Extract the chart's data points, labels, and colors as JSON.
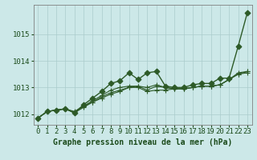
{
  "title": "Graphe pression niveau de la mer (hPa)",
  "background_color": "#cce8e8",
  "grid_color": "#aacccc",
  "line_color": "#2d5a27",
  "xlim": [
    -0.5,
    23.5
  ],
  "ylim": [
    1011.6,
    1016.1
  ],
  "yticks": [
    1012,
    1013,
    1014,
    1015
  ],
  "xticks": [
    0,
    1,
    2,
    3,
    4,
    5,
    6,
    7,
    8,
    9,
    10,
    11,
    12,
    13,
    14,
    15,
    16,
    17,
    18,
    19,
    20,
    21,
    22,
    23
  ],
  "series": [
    {
      "y": [
        1011.85,
        1012.1,
        1012.15,
        1012.2,
        1012.05,
        1012.35,
        1012.6,
        1012.85,
        1013.15,
        1013.25,
        1013.55,
        1013.3,
        1013.55,
        1013.6,
        1013.05,
        1013.0,
        1013.0,
        1013.1,
        1013.15,
        1013.15,
        1013.35,
        1013.35,
        1014.55,
        1015.8
      ],
      "marker": "D",
      "markersize": 3.5,
      "lw": 1.0
    },
    {
      "y": [
        1011.85,
        1012.1,
        1012.15,
        1012.2,
        1012.05,
        1012.3,
        1012.5,
        1012.7,
        1012.9,
        1013.0,
        1013.05,
        1013.05,
        1012.9,
        1013.05,
        1013.0,
        1012.95,
        1012.95,
        1013.0,
        1013.05,
        1013.05,
        1013.1,
        1013.3,
        1013.55,
        1013.6
      ],
      "marker": "+",
      "markersize": 4,
      "lw": 0.8
    },
    {
      "y": [
        1011.85,
        1012.1,
        1012.15,
        1012.2,
        1012.05,
        1012.25,
        1012.45,
        1012.65,
        1012.8,
        1012.9,
        1013.0,
        1013.0,
        1012.85,
        1012.9,
        1012.9,
        1012.95,
        1012.95,
        1013.0,
        1013.05,
        1013.05,
        1013.1,
        1013.3,
        1013.5,
        1013.55
      ],
      "marker": "+",
      "markersize": 4,
      "lw": 0.8
    },
    {
      "y": [
        1011.85,
        1012.1,
        1012.15,
        1012.2,
        1012.1,
        1012.3,
        1012.45,
        1012.6,
        1012.75,
        1012.85,
        1013.0,
        1013.05,
        1013.0,
        1013.1,
        1013.0,
        1012.95,
        1012.95,
        1013.0,
        1013.05,
        1013.05,
        1013.1,
        1013.3,
        1013.5,
        1013.6
      ],
      "marker": "+",
      "markersize": 4,
      "lw": 0.8
    }
  ],
  "fontsize_label": 7,
  "fontsize_tick": 6.5,
  "tick_color": "#1a4a1a",
  "label_color": "#1a4a1a"
}
